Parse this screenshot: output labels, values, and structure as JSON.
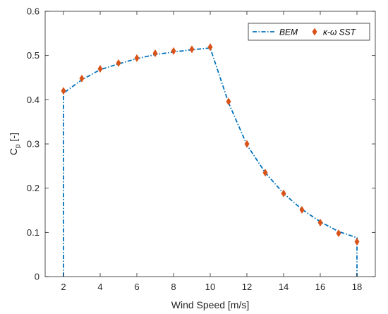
{
  "chart_data": {
    "type": "line",
    "xlabel": "Wind Speed [m/s]",
    "ylabel_main": "C",
    "ylabel_sub": "p",
    "ylabel_suffix": " [-]",
    "xlim": [
      1,
      19
    ],
    "ylim": [
      0,
      0.6
    ],
    "xticks": [
      2,
      4,
      6,
      8,
      10,
      12,
      14,
      16,
      18
    ],
    "yticks": [
      0,
      0.1,
      0.2,
      0.3,
      0.4,
      0.5,
      0.6
    ],
    "ytick_labels": [
      "0",
      "0.1",
      "0.2",
      "0.3",
      "0.4",
      "0.5",
      "0.6"
    ],
    "grid": false,
    "legend_position": "top-right",
    "series": [
      {
        "name": "BEM",
        "style": "dash-dot line",
        "color": "#0072BD",
        "x": [
          2,
          2,
          3,
          4,
          5,
          6,
          7,
          8,
          9,
          10,
          11,
          12,
          13,
          14,
          15,
          16,
          17,
          18,
          18
        ],
        "y": [
          0,
          0.415,
          0.445,
          0.468,
          0.481,
          0.493,
          0.502,
          0.508,
          0.513,
          0.517,
          0.393,
          0.298,
          0.235,
          0.188,
          0.152,
          0.124,
          0.102,
          0.088,
          0
        ]
      },
      {
        "name": "κ-ω SST",
        "style": "diamond markers",
        "color": "#D95319",
        "x": [
          2,
          3,
          4,
          5,
          6,
          7,
          8,
          9,
          10,
          11,
          12,
          13,
          14,
          15,
          16,
          17,
          18
        ],
        "y": [
          0.42,
          0.448,
          0.47,
          0.483,
          0.494,
          0.505,
          0.51,
          0.514,
          0.519,
          0.396,
          0.3,
          0.235,
          0.188,
          0.151,
          0.122,
          0.098,
          0.079
        ]
      }
    ]
  }
}
